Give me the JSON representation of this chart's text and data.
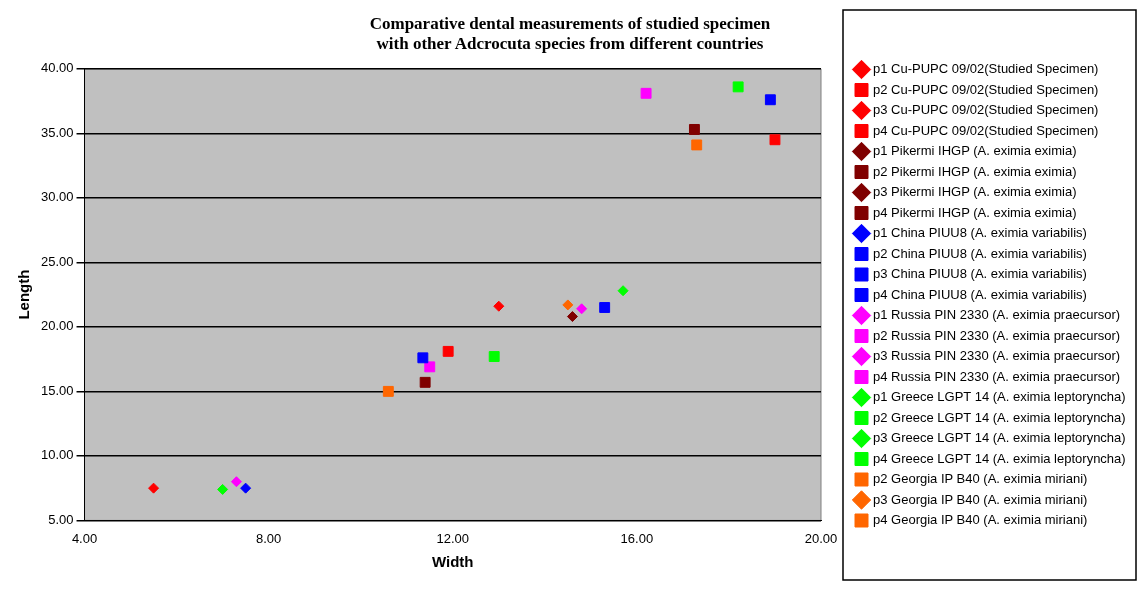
{
  "chart_data": {
    "type": "scatter",
    "title": [
      "Comparative dental measurements of studied specimen",
      "with other Adcrocuta species from different countries"
    ],
    "xlabel": "Width",
    "ylabel": "Length",
    "xlim": [
      4,
      20
    ],
    "xticks": [
      {
        "value": 4,
        "label": "4.00"
      },
      {
        "value": 8,
        "label": "8.00"
      },
      {
        "value": 12,
        "label": "12.00"
      },
      {
        "value": 16,
        "label": "16.00"
      },
      {
        "value": 20,
        "label": "20.00"
      }
    ],
    "ylim": [
      5,
      40
    ],
    "yticks": [
      {
        "value": 5,
        "label": "5.00"
      },
      {
        "value": 10,
        "label": "10.00"
      },
      {
        "value": 15,
        "label": "15.00"
      },
      {
        "value": 20,
        "label": "20.00"
      },
      {
        "value": 25,
        "label": "25.00"
      },
      {
        "value": 30,
        "label": "30.00"
      },
      {
        "value": 35,
        "label": "35.00"
      },
      {
        "value": 40,
        "label": "40.00"
      }
    ],
    "grid": "y",
    "legend": "right",
    "series": [
      {
        "name": "p1 Cu-PUPC 09/02(Studied Specimen)",
        "color": "#ff0000",
        "marker": "diamond",
        "x": [
          5.5
        ],
        "values": [
          7.5
        ]
      },
      {
        "name": "p2 Cu-PUPC 09/02(Studied Specimen)",
        "color": "#ff0000",
        "marker": "square",
        "x": [
          11.9
        ],
        "values": [
          18.1
        ]
      },
      {
        "name": "p3 Cu-PUPC 09/02(Studied Specimen)",
        "color": "#ff0000",
        "marker": "diamond",
        "x": [
          13.0
        ],
        "values": [
          21.6
        ]
      },
      {
        "name": "p4 Cu-PUPC 09/02(Studied Specimen)",
        "color": "#ff0000",
        "marker": "square",
        "x": [
          19.0
        ],
        "values": [
          34.5
        ]
      },
      {
        "name": "p1 Pikermi IHGP (A. eximia eximia)",
        "color": "#800000",
        "marker": "diamond",
        "x": [
          null
        ],
        "values": [
          null
        ]
      },
      {
        "name": "p2 Pikermi IHGP (A. eximia eximia)",
        "color": "#800000",
        "marker": "square",
        "x": [
          11.4
        ],
        "values": [
          15.7
        ]
      },
      {
        "name": "p3 Pikermi IHGP (A. eximia eximia)",
        "color": "#800000",
        "marker": "diamond",
        "x": [
          14.6
        ],
        "values": [
          20.8
        ]
      },
      {
        "name": "p4 Pikermi IHGP (A. eximia eximia)",
        "color": "#800000",
        "marker": "square",
        "x": [
          17.25
        ],
        "values": [
          35.3
        ]
      },
      {
        "name": "p1 China PIUU8 (A. eximia variabilis)",
        "color": "#0000ff",
        "marker": "diamond",
        "x": [
          7.5
        ],
        "values": [
          7.5
        ]
      },
      {
        "name": "p2 China PIUU8 (A. eximia variabilis)",
        "color": "#0000ff",
        "marker": "square",
        "x": [
          11.35
        ],
        "values": [
          17.6
        ]
      },
      {
        "name": "p3 China PIUU8 (A. eximia variabilis)",
        "color": "#0000ff",
        "marker": "square",
        "x": [
          15.3
        ],
        "values": [
          21.5
        ]
      },
      {
        "name": "p4 China PIUU8 (A. eximia variabilis)",
        "color": "#0000ff",
        "marker": "square",
        "x": [
          18.9
        ],
        "values": [
          37.6
        ]
      },
      {
        "name": "p1 Russia PIN 2330 (A. eximia praecursor)",
        "color": "#ff00ff",
        "marker": "diamond",
        "x": [
          7.3
        ],
        "values": [
          8.0
        ]
      },
      {
        "name": "p2 Russia PIN 2330 (A. eximia praecursor)",
        "color": "#ff00ff",
        "marker": "square",
        "x": [
          11.5
        ],
        "values": [
          16.9
        ]
      },
      {
        "name": "p3 Russia PIN 2330 (A. eximia praecursor)",
        "color": "#ff00ff",
        "marker": "diamond",
        "x": [
          14.8
        ],
        "values": [
          21.4
        ]
      },
      {
        "name": "p4 Russia PIN 2330 (A. eximia praecursor)",
        "color": "#ff00ff",
        "marker": "square",
        "x": [
          16.2
        ],
        "values": [
          38.1
        ]
      },
      {
        "name": "p1 Greece LGPT 14 (A. eximia leptoryncha)",
        "color": "#00ff00",
        "marker": "diamond",
        "x": [
          7.0
        ],
        "values": [
          7.4
        ]
      },
      {
        "name": "p2 Greece LGPT 14 (A. eximia leptoryncha)",
        "color": "#00ff00",
        "marker": "square",
        "x": [
          12.9
        ],
        "values": [
          17.7
        ]
      },
      {
        "name": "p3 Greece LGPT 14 (A. eximia leptoryncha)",
        "color": "#00ff00",
        "marker": "diamond",
        "x": [
          15.7
        ],
        "values": [
          22.8
        ]
      },
      {
        "name": "p4 Greece LGPT 14 (A. eximia leptoryncha)",
        "color": "#00ff00",
        "marker": "square",
        "x": [
          18.2
        ],
        "values": [
          38.6
        ]
      },
      {
        "name": "p2 Georgia IP B40 (A. eximia miriani)",
        "color": "#ff6600",
        "marker": "square",
        "x": [
          10.6
        ],
        "values": [
          15.0
        ]
      },
      {
        "name": "p3 Georgia IP B40 (A. eximia miriani)",
        "color": "#ff6600",
        "marker": "diamond",
        "x": [
          14.5
        ],
        "values": [
          21.7
        ]
      },
      {
        "name": "p4 Georgia IP B40 (A. eximia miriani)",
        "color": "#ff6600",
        "marker": "square",
        "x": [
          17.3
        ],
        "values": [
          34.1
        ]
      }
    ]
  }
}
